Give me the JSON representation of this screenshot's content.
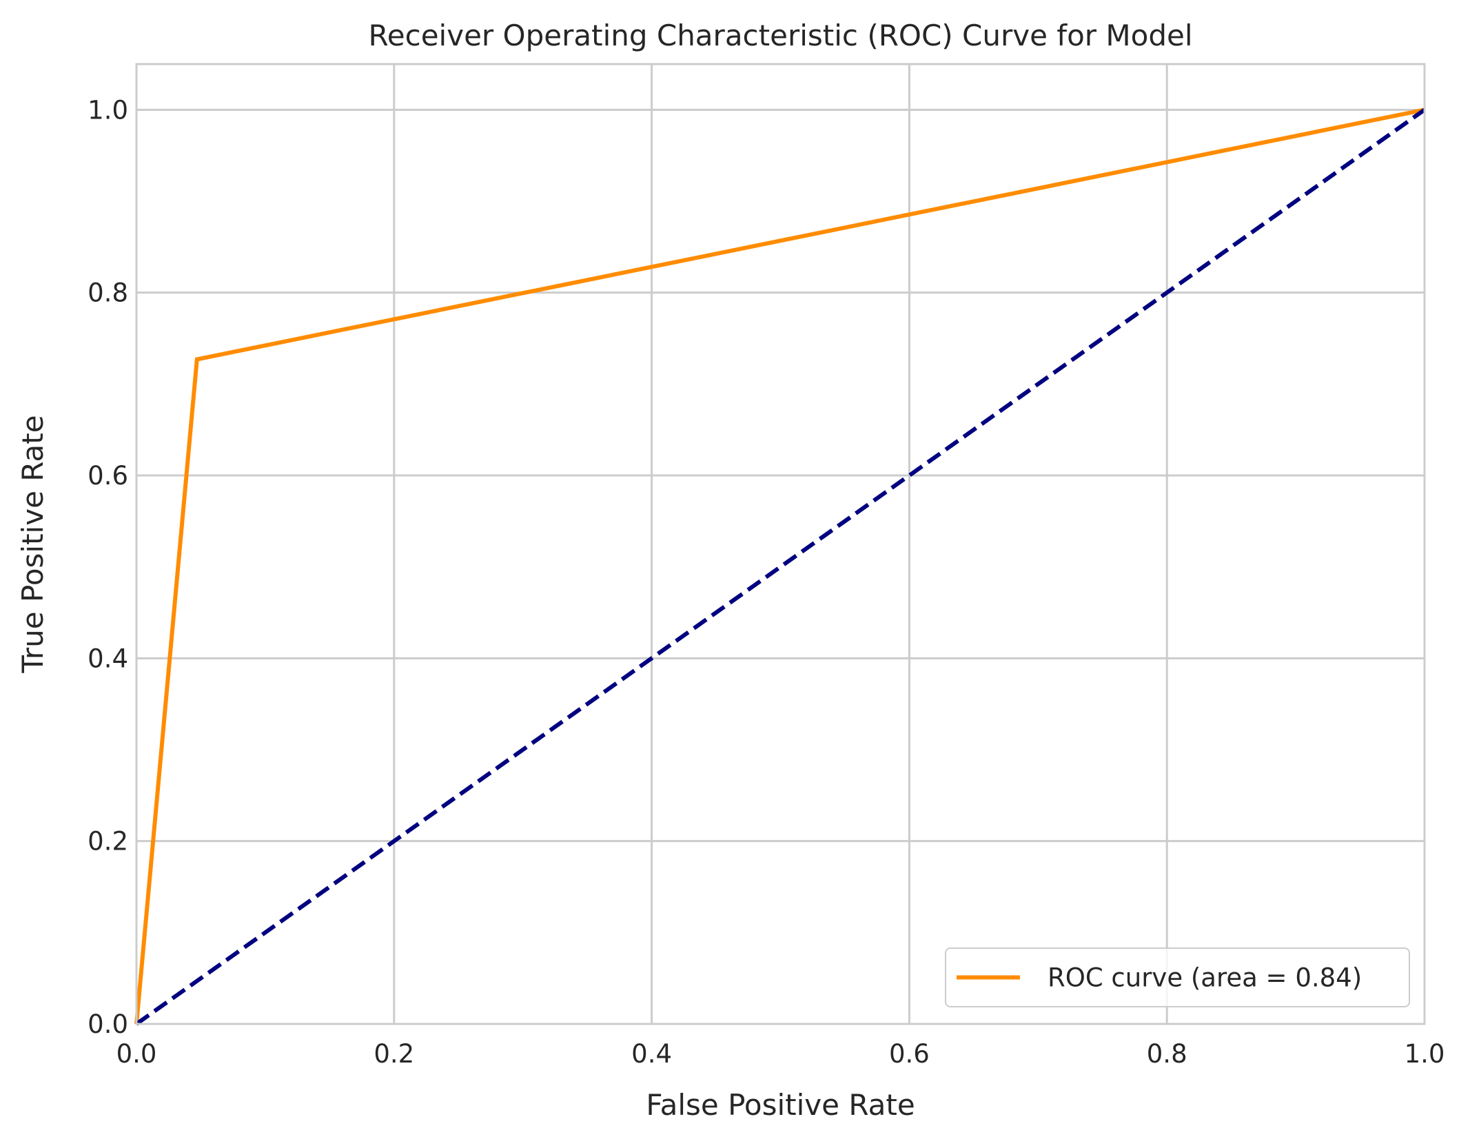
{
  "chart_data": {
    "type": "line",
    "title": "Receiver Operating Characteristic (ROC) Curve for Model",
    "xlabel": "False Positive Rate",
    "ylabel": "True Positive Rate",
    "xlim": [
      0.0,
      1.0
    ],
    "ylim": [
      0.0,
      1.05
    ],
    "xticks": [
      "0.0",
      "0.2",
      "0.4",
      "0.6",
      "0.8",
      "1.0"
    ],
    "yticks": [
      "0.0",
      "0.2",
      "0.4",
      "0.6",
      "0.8",
      "1.0"
    ],
    "grid": true,
    "legend_position": "lower-right",
    "series": [
      {
        "name": "ROC curve (area = 0.84)",
        "color": "#ff8c00",
        "style": "solid",
        "in_legend": true,
        "points": [
          [
            0.0,
            0.0
          ],
          [
            0.047,
            0.727
          ],
          [
            1.0,
            1.0
          ]
        ]
      },
      {
        "color": "#000080",
        "style": "dashed",
        "in_legend": false,
        "points": [
          [
            0.0,
            0.0
          ],
          [
            1.0,
            1.0
          ]
        ]
      }
    ],
    "colors": {
      "grid": "#cccccc",
      "frame": "#cccccc",
      "text": "#262626",
      "background": "#ffffff"
    }
  }
}
